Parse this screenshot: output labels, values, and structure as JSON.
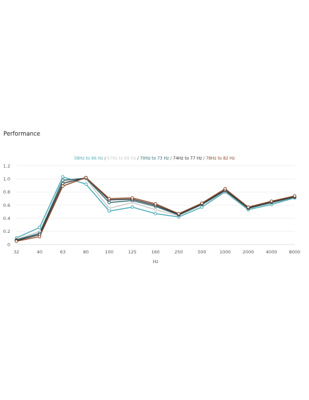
{
  "page": {
    "section_title": "Performance"
  },
  "chart_data": {
    "type": "line",
    "title": "",
    "xlabel": "Hz",
    "ylabel": "",
    "categories": [
      "32",
      "40",
      "63",
      "80",
      "100",
      "125",
      "160",
      "250",
      "500",
      "1000",
      "2000",
      "4000",
      "8000"
    ],
    "ylim": [
      0,
      1.2
    ],
    "yticks": [
      "0",
      "0.2",
      "0.4",
      "0.6",
      "0.8",
      "1.0",
      "1.2"
    ],
    "grid": true,
    "legend_position": "top-center",
    "series": [
      {
        "name": "58Hz to 66 Hz",
        "color": "#4aa9b5",
        "values": [
          0.1,
          0.26,
          1.03,
          0.92,
          0.51,
          0.57,
          0.47,
          0.42,
          0.57,
          0.8,
          0.53,
          0.61,
          0.71
        ]
      },
      {
        "name": "67Hz to 69 Hz",
        "color": "#c9c9c9",
        "values": [
          0.08,
          0.2,
          0.96,
          1.0,
          0.55,
          0.64,
          0.53,
          0.44,
          0.6,
          0.81,
          0.55,
          0.63,
          0.72
        ]
      },
      {
        "name": "70Hz to 73 Hz",
        "color": "#2f6870",
        "values": [
          0.07,
          0.17,
          0.98,
          1.01,
          0.64,
          0.67,
          0.58,
          0.45,
          0.61,
          0.82,
          0.55,
          0.64,
          0.72
        ]
      },
      {
        "name": "74Hz to 77 Hz",
        "color": "#333333",
        "values": [
          0.06,
          0.15,
          0.93,
          1.02,
          0.68,
          0.69,
          0.6,
          0.46,
          0.62,
          0.83,
          0.56,
          0.65,
          0.73
        ]
      },
      {
        "name": "78Hz to 82 Hz",
        "color": "#8a4a2c",
        "values": [
          0.05,
          0.12,
          0.89,
          1.02,
          0.7,
          0.71,
          0.62,
          0.47,
          0.63,
          0.85,
          0.57,
          0.66,
          0.74
        ]
      }
    ]
  }
}
